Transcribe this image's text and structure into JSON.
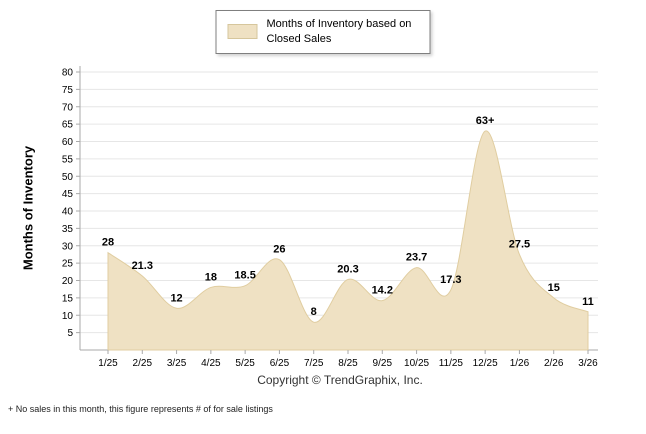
{
  "legend": {
    "label": "Months of Inventory based on Closed Sales"
  },
  "copyright": "Copyright © TrendGraphix, Inc.",
  "footnote": "+ No sales in this month, this figure represents # of for sale listings",
  "colors": {
    "area_fill": "#EFE1C3",
    "area_stroke": "#E0CDA0",
    "grid": "#E6E6E6",
    "axis": "#AAAAAA",
    "text": "#000000"
  },
  "chart_data": {
    "type": "area",
    "title": "",
    "legend": "Months of Inventory based on Closed Sales",
    "legend_position": "top-center",
    "ylabel": "Months of Inventory",
    "xlabel": "",
    "ylim": [
      0,
      80
    ],
    "ytick_step": 5,
    "grid": true,
    "categories": [
      "1/25",
      "2/25",
      "3/25",
      "4/25",
      "5/25",
      "6/25",
      "7/25",
      "8/25",
      "9/25",
      "10/25",
      "11/25",
      "12/25",
      "1/26",
      "2/26",
      "3/26"
    ],
    "values": [
      28,
      21.3,
      12,
      18,
      18.5,
      26,
      8,
      20.3,
      14.2,
      23.7,
      17.3,
      63,
      27.5,
      15,
      11
    ],
    "point_labels": [
      "28",
      "21.3",
      "12",
      "18",
      "18.5",
      "26",
      "8",
      "20.3",
      "14.2",
      "23.7",
      "17.3",
      "63+",
      "27.5",
      "15",
      "11"
    ],
    "footnote_marker_meaning": "+ No sales in this month, this figure represents # of for sale listings"
  }
}
